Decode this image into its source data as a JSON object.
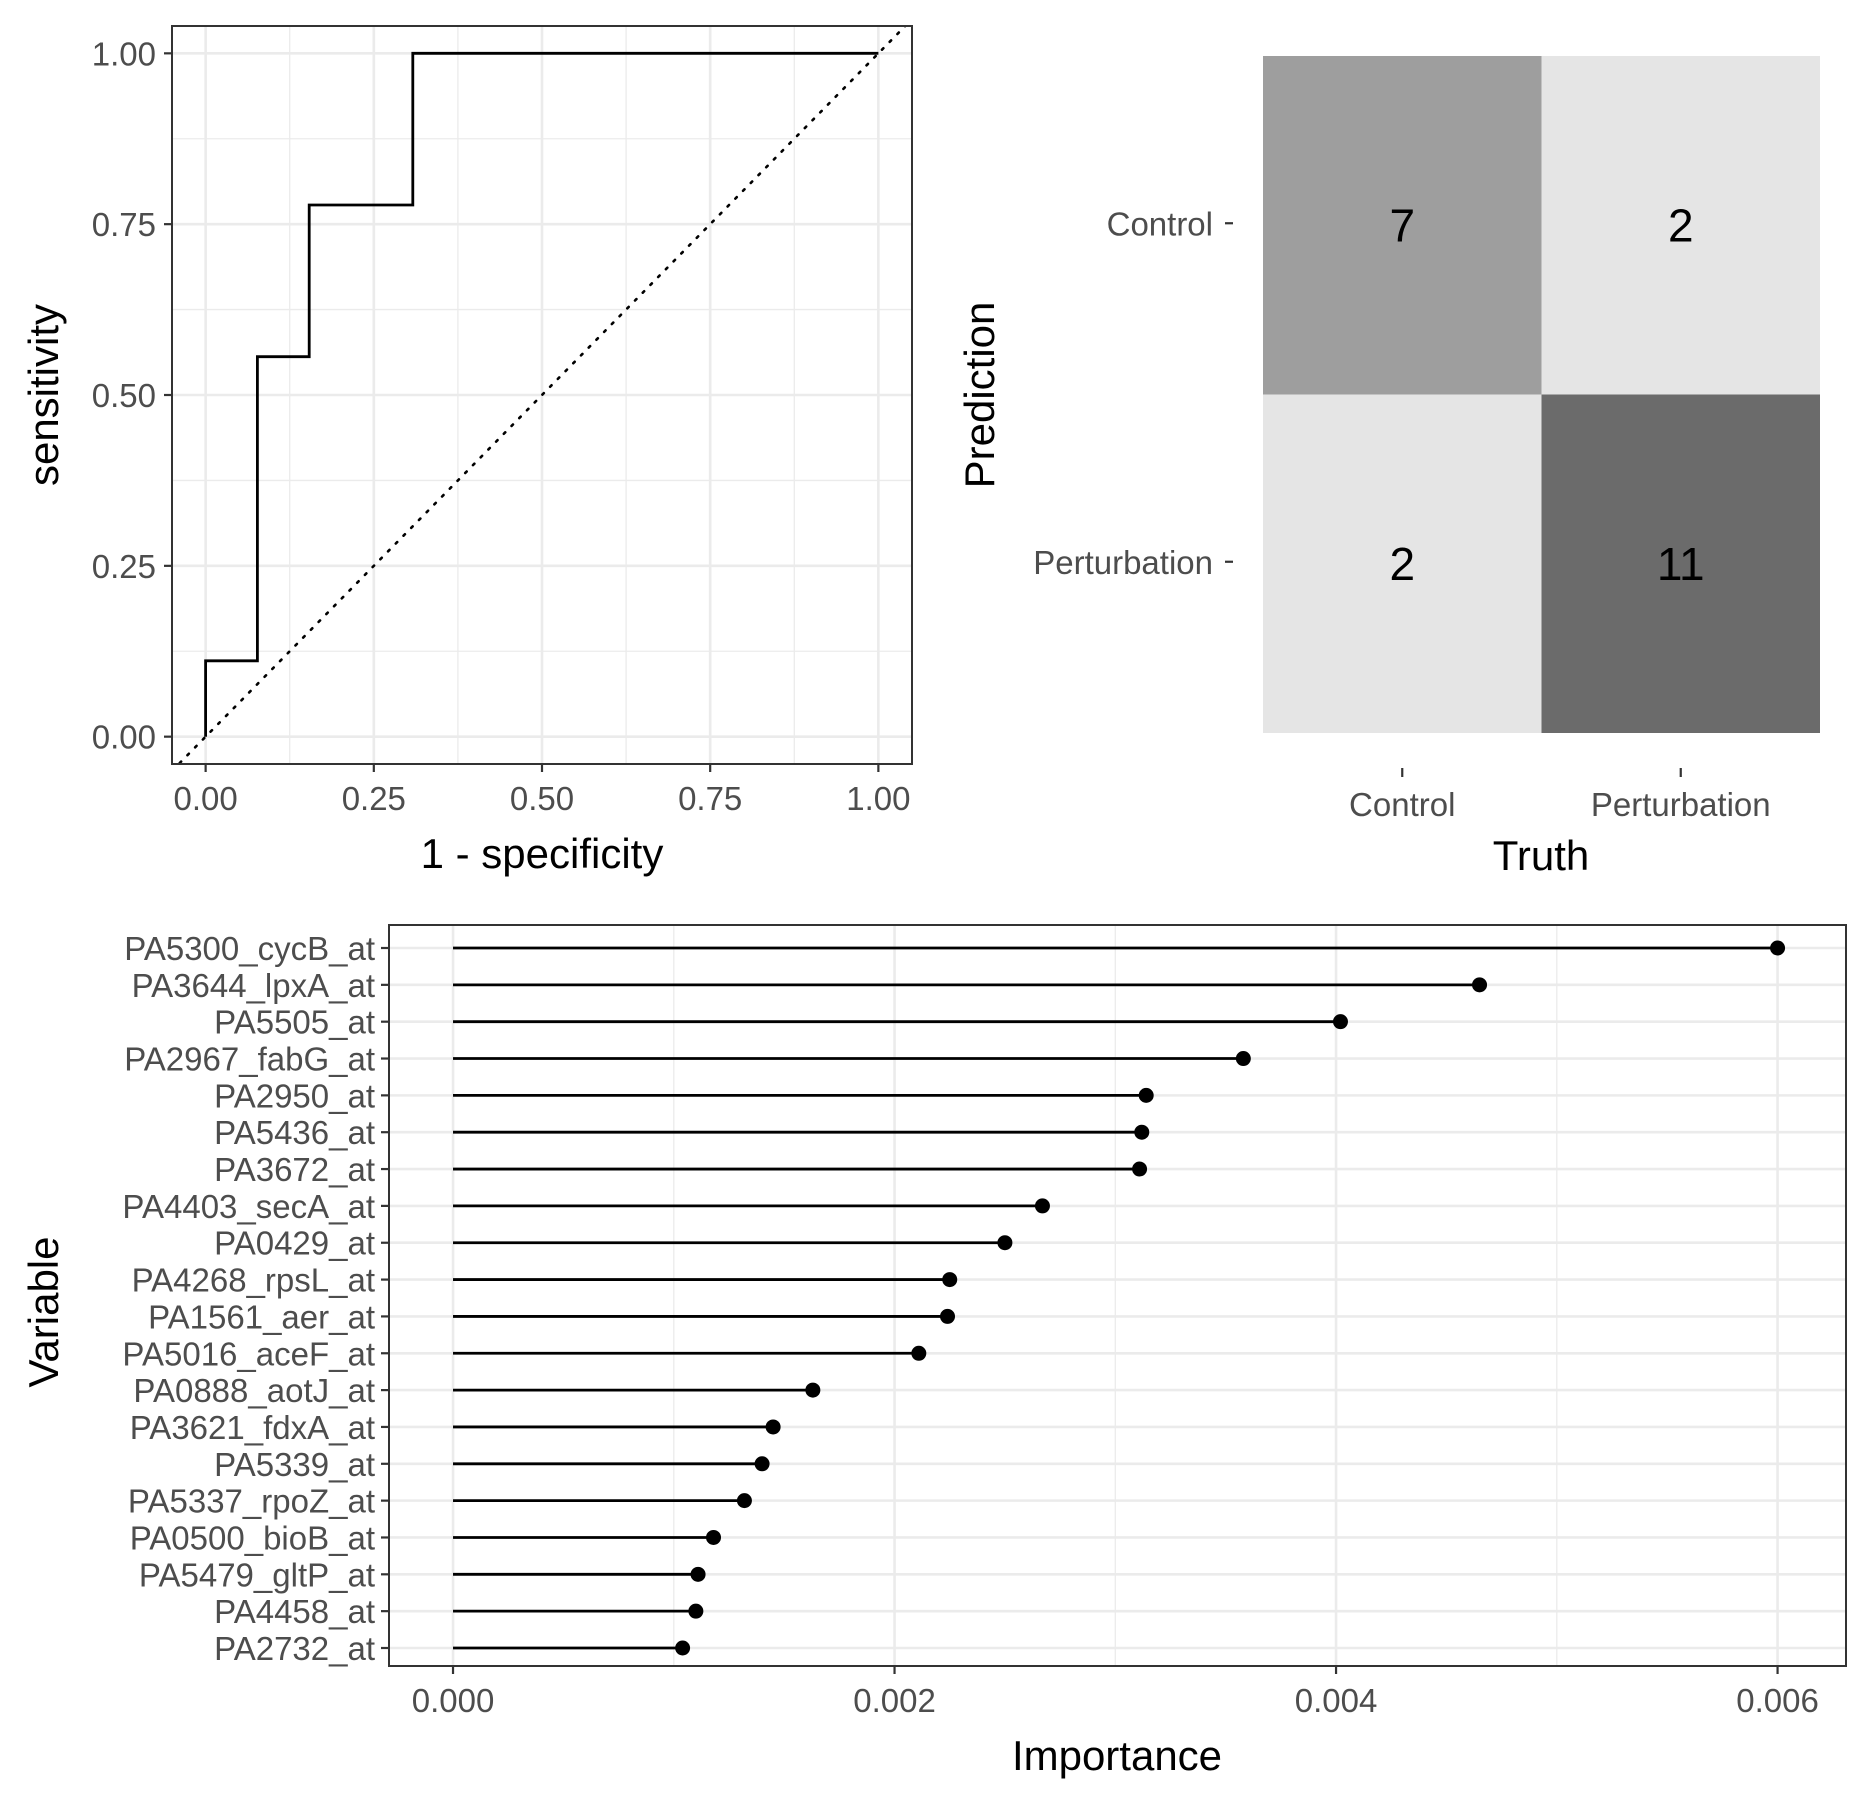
{
  "chart_data": [
    {
      "type": "line",
      "name": "roc-curve",
      "xlabel": "1 - specificity",
      "ylabel": "sensitivity",
      "xlim": [
        -0.05,
        1.05
      ],
      "ylim": [
        -0.04,
        1.04
      ],
      "xticks": [
        0,
        0.25,
        0.5,
        0.75,
        1
      ],
      "xtick_labels": [
        "0.00",
        "0.25",
        "0.50",
        "0.75",
        "1.00"
      ],
      "yticks": [
        0,
        0.25,
        0.5,
        0.75,
        1
      ],
      "ytick_labels": [
        "0.00",
        "0.25",
        "0.50",
        "0.75",
        "1.00"
      ],
      "grid": true,
      "series": [
        {
          "name": "ROC",
          "style": "step",
          "x": [
            0,
            0,
            0.077,
            0.077,
            0.154,
            0.154,
            0.308,
            0.308,
            1.0
          ],
          "y": [
            0,
            0.111,
            0.111,
            0.556,
            0.556,
            0.778,
            0.778,
            1.0,
            1.0
          ]
        },
        {
          "name": "chance",
          "style": "dotted",
          "x": [
            -0.05,
            1.05
          ],
          "y": [
            -0.05,
            1.05
          ]
        }
      ]
    },
    {
      "type": "heatmap",
      "name": "confusion-matrix",
      "xlabel": "Truth",
      "ylabel": "Prediction",
      "x_categories": [
        "Control",
        "Perturbation"
      ],
      "y_categories": [
        "Control",
        "Perturbation"
      ],
      "cells": [
        {
          "prediction": "Control",
          "truth": "Control",
          "value": 7,
          "label": "7",
          "color": "#9e9e9e"
        },
        {
          "prediction": "Control",
          "truth": "Perturbation",
          "value": 2,
          "label": "2",
          "color": "#e5e5e5"
        },
        {
          "prediction": "Perturbation",
          "truth": "Control",
          "value": 2,
          "label": "2",
          "color": "#e5e5e5"
        },
        {
          "prediction": "Perturbation",
          "truth": "Perturbation",
          "value": 11,
          "label": "11",
          "color": "#6b6b6b"
        }
      ]
    },
    {
      "type": "lollipop",
      "name": "variable-importance",
      "xlabel": "Importance",
      "ylabel": "Variable",
      "xlim": [
        -0.00029,
        0.00631
      ],
      "xticks": [
        0,
        0.002,
        0.004,
        0.006
      ],
      "xtick_labels": [
        "0.000",
        "0.002",
        "0.004",
        "0.006"
      ],
      "grid": true,
      "categories": [
        "PA5300_cycB_at",
        "PA3644_lpxA_at",
        "PA5505_at",
        "PA2967_fabG_at",
        "PA2950_at",
        "PA5436_at",
        "PA3672_at",
        "PA4403_secA_at",
        "PA0429_at",
        "PA4268_rpsL_at",
        "PA1561_aer_at",
        "PA5016_aceF_at",
        "PA0888_aotJ_at",
        "PA3621_fdxA_at",
        "PA5339_at",
        "PA5337_rpoZ_at",
        "PA0500_bioB_at",
        "PA5479_gltP_at",
        "PA4458_at",
        "PA2732_at"
      ],
      "values": [
        0.006,
        0.00465,
        0.00402,
        0.00358,
        0.00314,
        0.00312,
        0.00311,
        0.00267,
        0.0025,
        0.00225,
        0.00224,
        0.00211,
        0.00163,
        0.00145,
        0.0014,
        0.00132,
        0.00118,
        0.00111,
        0.0011,
        0.00104
      ]
    }
  ]
}
